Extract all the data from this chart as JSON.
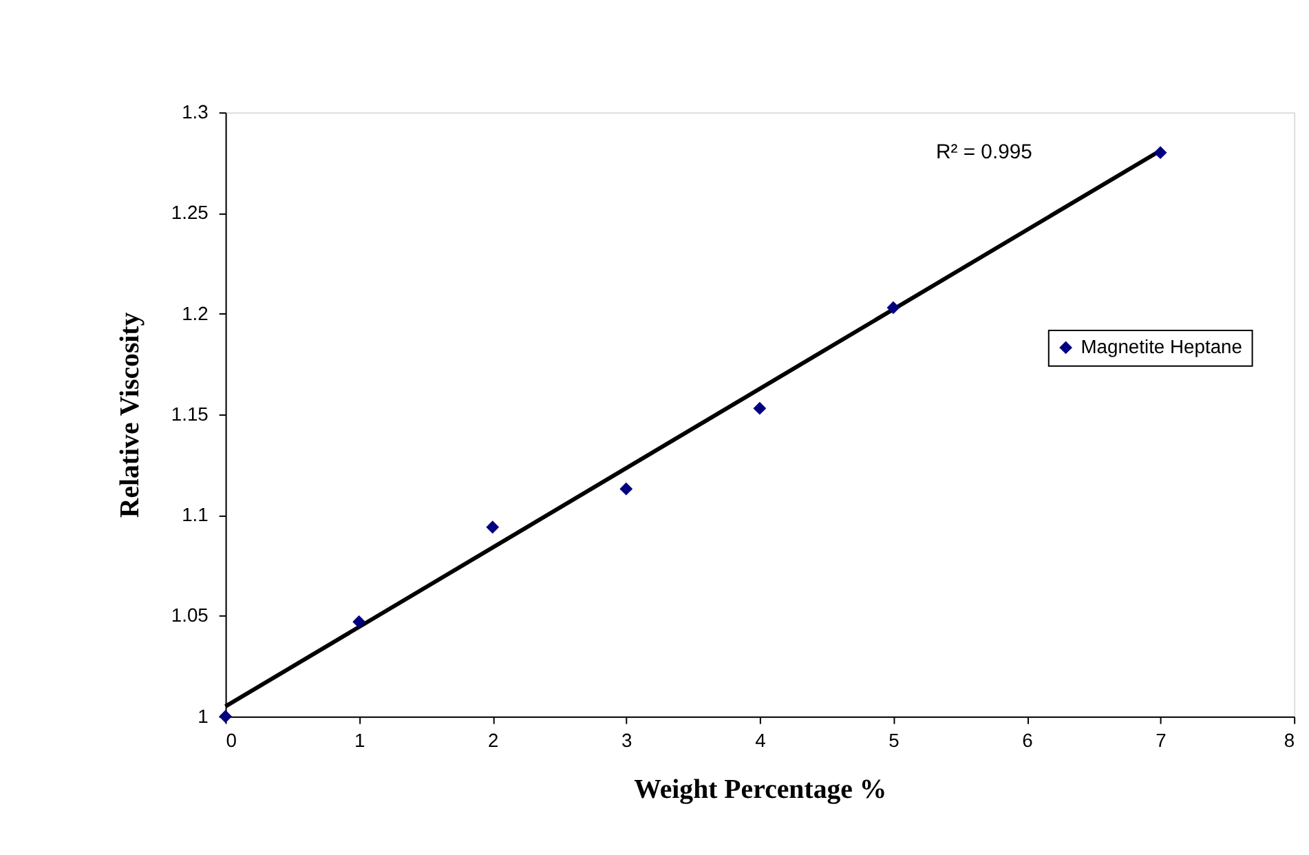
{
  "chart_data": {
    "type": "scatter",
    "xlabel": "Weight Percentage %",
    "ylabel": "Relative Viscosity",
    "xlim": [
      0,
      8
    ],
    "xticks": [
      0,
      1,
      2,
      3,
      4,
      5,
      6,
      7,
      8
    ],
    "ylim": [
      1,
      1.3
    ],
    "yticks": [
      1,
      1.05,
      1.1,
      1.15,
      1.2,
      1.25,
      1.3
    ],
    "grid": false,
    "legend": "right",
    "marker": "diamond",
    "annotations": [
      "R² = 0.995"
    ],
    "series": [
      {
        "name": "Magnetite Heptane",
        "color": "#000080",
        "x": [
          0,
          1,
          2,
          3,
          4,
          5,
          7
        ],
        "values": [
          1.0,
          1.047,
          1.094,
          1.113,
          1.153,
          1.203,
          1.28
        ]
      },
      {
        "type": "line",
        "color": "#000000",
        "x": [
          0,
          7
        ],
        "values": [
          1.005,
          1.281
        ],
        "line_style": "solid",
        "marker": "none"
      }
    ]
  }
}
